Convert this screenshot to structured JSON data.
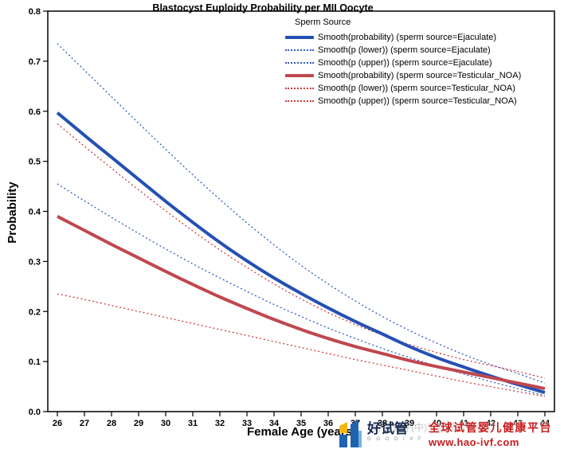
{
  "chart_data": {
    "type": "line",
    "title": "Blastocyst Euploidy Probability per MII Oocyte",
    "xlabel": "Female Age (years)",
    "ylabel": "Probability",
    "legend_title": "Sperm Source",
    "legend_position": "top-center-inside",
    "grid": false,
    "xlim": [
      25.6,
      44.4
    ],
    "ylim": [
      0.0,
      0.8
    ],
    "x_ticks": [
      26,
      27,
      28,
      29,
      30,
      31,
      32,
      33,
      34,
      35,
      36,
      37,
      38,
      39,
      40,
      41,
      42,
      43,
      44
    ],
    "y_ticks": [
      "0.0",
      "0.1",
      "0.2",
      "0.3",
      "0.4",
      "0.5",
      "0.6",
      "0.7",
      "0.8"
    ],
    "x": [
      26,
      27,
      28,
      29,
      30,
      31,
      32,
      33,
      34,
      35,
      36,
      37,
      38,
      39,
      40,
      41,
      42,
      43,
      44
    ],
    "series": [
      {
        "label": "Smooth(probability) (sperm source=Ejaculate)",
        "color": "#2450b4",
        "line": "solid",
        "width": 4,
        "values": [
          0.597,
          0.552,
          0.508,
          0.464,
          0.42,
          0.378,
          0.338,
          0.301,
          0.267,
          0.236,
          0.207,
          0.18,
          0.155,
          0.13,
          0.108,
          0.089,
          0.071,
          0.054,
          0.038
        ]
      },
      {
        "label": "Smooth(p (lower)) (sperm source=Ejaculate)",
        "color": "#2f5cbf",
        "line": "dotted",
        "width": 1.3,
        "values": [
          0.455,
          0.421,
          0.388,
          0.356,
          0.325,
          0.295,
          0.267,
          0.24,
          0.214,
          0.19,
          0.167,
          0.146,
          0.126,
          0.108,
          0.091,
          0.075,
          0.06,
          0.046,
          0.032
        ]
      },
      {
        "label": "Smooth(p (upper)) (sperm source=Ejaculate)",
        "color": "#2f5cbf",
        "line": "dotted",
        "width": 1.3,
        "values": [
          0.735,
          0.682,
          0.629,
          0.576,
          0.524,
          0.473,
          0.424,
          0.377,
          0.333,
          0.292,
          0.255,
          0.221,
          0.19,
          0.162,
          0.137,
          0.114,
          0.094,
          0.076,
          0.057
        ]
      },
      {
        "label": "Smooth(probability) (sperm source=Testicular_NOA)",
        "color": "#c0474e",
        "line": "solid",
        "width": 4,
        "values": [
          0.39,
          0.362,
          0.334,
          0.307,
          0.28,
          0.254,
          0.229,
          0.206,
          0.184,
          0.164,
          0.146,
          0.13,
          0.116,
          0.102,
          0.09,
          0.079,
          0.068,
          0.057,
          0.046
        ]
      },
      {
        "label": "Smooth(p (lower)) (sperm source=Testicular_NOA)",
        "color": "#cf3b3b",
        "line": "dotted",
        "width": 1.3,
        "values": [
          0.235,
          0.224,
          0.212,
          0.2,
          0.188,
          0.176,
          0.164,
          0.152,
          0.14,
          0.128,
          0.116,
          0.104,
          0.093,
          0.082,
          0.071,
          0.06,
          0.05,
          0.04,
          0.03
        ]
      },
      {
        "label": "Smooth(p (upper)) (sperm source=Testicular_NOA)",
        "color": "#cf3b3b",
        "line": "dotted",
        "width": 1.3,
        "values": [
          0.575,
          0.53,
          0.486,
          0.443,
          0.401,
          0.361,
          0.323,
          0.288,
          0.255,
          0.225,
          0.198,
          0.174,
          0.153,
          0.134,
          0.118,
          0.104,
          0.092,
          0.08,
          0.067
        ]
      }
    ]
  },
  "watermark": {
    "faint_text": "好试管评(中)生殖医学中心",
    "brand": "好试管",
    "brand_sub": "G O O D  I V F",
    "tagline": "全球试管婴儿健康平台",
    "url": "www.hao-ivf.com"
  },
  "colors": {
    "ejaculate_blue": "#2450b4",
    "testicular_red": "#c0474e",
    "axis_black": "#000000",
    "watermark_red": "#c71c1c",
    "logo_blue": "#1f63b0",
    "logo_yellow": "#f5b60d"
  }
}
